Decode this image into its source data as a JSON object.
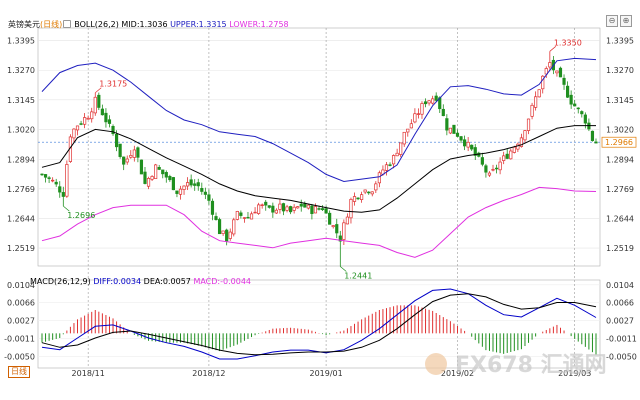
{
  "header": {
    "pair": "英镑美元",
    "period": "日线",
    "boll_label": "BOLL(26,2)",
    "mid": "MID:1.3036",
    "upper": "UPPER:1.3315",
    "lower": "LOWER:1.2758"
  },
  "macd_header": {
    "label": "MACD(26,12,9)",
    "diff": "DIFF:0.0034",
    "dea": "DEA:0.0057",
    "macd": "MACD:-0.0044"
  },
  "bottom_tab": "日线",
  "window_controls": [
    "⊖",
    "⊕"
  ],
  "watermark": "FX678 汇通网",
  "colors": {
    "up": "#e03030",
    "down": "#1f8f1f",
    "mid": "#000000",
    "upper": "#2020c0",
    "lower": "#e030e0",
    "diff": "#0000c8",
    "dea": "#000000",
    "current": "#e07b00"
  },
  "chart_data": {
    "type": "candlestick",
    "price_ticks": [
      "1.3395",
      "1.3270",
      "1.3145",
      "1.3020",
      "1.2894",
      "1.2769",
      "1.2644",
      "1.2519"
    ],
    "price_range": [
      1.246,
      1.344
    ],
    "current_price": "1.2966",
    "annotations": [
      {
        "label": "1.3175",
        "index": 15,
        "value": 1.3175,
        "kind": "high"
      },
      {
        "label": "1.2696",
        "index": 6,
        "value": 1.2696,
        "kind": "low"
      },
      {
        "label": "1.2441",
        "index": 84,
        "value": 1.2441,
        "kind": "low"
      },
      {
        "label": "1.3350",
        "index": 143,
        "value": 1.335,
        "kind": "high"
      }
    ],
    "date_labels": [
      {
        "label": "2018/11",
        "index": 13
      },
      {
        "label": "2018/12",
        "index": 47
      },
      {
        "label": "2019/01",
        "index": 80
      },
      {
        "label": "2019/02",
        "index": 117
      },
      {
        "label": "2019/03",
        "index": 150
      }
    ],
    "boll": {
      "mid": [
        [
          0,
          1.286
        ],
        [
          5,
          1.288
        ],
        [
          10,
          1.2985
        ],
        [
          15,
          1.302
        ],
        [
          20,
          1.301
        ],
        [
          25,
          1.298
        ],
        [
          30,
          1.294
        ],
        [
          35,
          1.29
        ],
        [
          40,
          1.2865
        ],
        [
          45,
          1.283
        ],
        [
          50,
          1.279
        ],
        [
          55,
          1.276
        ],
        [
          60,
          1.274
        ],
        [
          65,
          1.273
        ],
        [
          70,
          1.272
        ],
        [
          75,
          1.2705
        ],
        [
          80,
          1.269
        ],
        [
          85,
          1.2675
        ],
        [
          90,
          1.267
        ],
        [
          95,
          1.268
        ],
        [
          100,
          1.273
        ],
        [
          105,
          1.279
        ],
        [
          110,
          1.285
        ],
        [
          115,
          1.2895
        ],
        [
          120,
          1.291
        ],
        [
          125,
          1.292
        ],
        [
          130,
          1.2935
        ],
        [
          135,
          1.2955
        ],
        [
          140,
          1.299
        ],
        [
          145,
          1.3025
        ],
        [
          150,
          1.3036
        ],
        [
          156,
          1.3036
        ]
      ],
      "upper": [
        [
          0,
          1.318
        ],
        [
          5,
          1.326
        ],
        [
          10,
          1.329
        ],
        [
          15,
          1.33
        ],
        [
          20,
          1.327
        ],
        [
          25,
          1.322
        ],
        [
          30,
          1.316
        ],
        [
          35,
          1.31
        ],
        [
          40,
          1.306
        ],
        [
          45,
          1.304
        ],
        [
          50,
          1.301
        ],
        [
          55,
          1.3
        ],
        [
          60,
          1.299
        ],
        [
          65,
          1.296
        ],
        [
          70,
          1.292
        ],
        [
          75,
          1.288
        ],
        [
          80,
          1.283
        ],
        [
          85,
          1.28
        ],
        [
          90,
          1.281
        ],
        [
          95,
          1.282
        ],
        [
          100,
          1.287
        ],
        [
          105,
          1.3
        ],
        [
          110,
          1.312
        ],
        [
          115,
          1.32
        ],
        [
          120,
          1.3205
        ],
        [
          125,
          1.319
        ],
        [
          130,
          1.317
        ],
        [
          135,
          1.3165
        ],
        [
          140,
          1.321
        ],
        [
          145,
          1.331
        ],
        [
          150,
          1.332
        ],
        [
          156,
          1.3315
        ]
      ],
      "lower": [
        [
          0,
          1.255
        ],
        [
          5,
          1.257
        ],
        [
          10,
          1.262
        ],
        [
          15,
          1.266
        ],
        [
          20,
          1.269
        ],
        [
          25,
          1.27
        ],
        [
          30,
          1.27
        ],
        [
          35,
          1.27
        ],
        [
          40,
          1.266
        ],
        [
          45,
          1.259
        ],
        [
          50,
          1.255
        ],
        [
          55,
          1.254
        ],
        [
          60,
          1.253
        ],
        [
          65,
          1.252
        ],
        [
          70,
          1.254
        ],
        [
          75,
          1.255
        ],
        [
          80,
          1.256
        ],
        [
          85,
          1.255
        ],
        [
          90,
          1.254
        ],
        [
          95,
          1.253
        ],
        [
          100,
          1.25
        ],
        [
          105,
          1.248
        ],
        [
          110,
          1.251
        ],
        [
          115,
          1.258
        ],
        [
          120,
          1.265
        ],
        [
          125,
          1.269
        ],
        [
          130,
          1.272
        ],
        [
          135,
          1.2745
        ],
        [
          140,
          1.2775
        ],
        [
          145,
          1.277
        ],
        [
          150,
          1.276
        ],
        [
          156,
          1.2758
        ]
      ]
    },
    "candles_keypoints": [
      [
        0,
        1.283
      ],
      [
        3,
        1.28
      ],
      [
        6,
        1.275
      ],
      [
        8,
        1.3
      ],
      [
        10,
        1.304
      ],
      [
        13,
        1.308
      ],
      [
        15,
        1.314
      ],
      [
        17,
        1.309
      ],
      [
        20,
        1.3
      ],
      [
        23,
        1.287
      ],
      [
        26,
        1.295
      ],
      [
        29,
        1.279
      ],
      [
        32,
        1.286
      ],
      [
        35,
        1.282
      ],
      [
        38,
        1.276
      ],
      [
        41,
        1.279
      ],
      [
        44,
        1.278
      ],
      [
        47,
        1.272
      ],
      [
        50,
        1.259
      ],
      [
        52,
        1.256
      ],
      [
        55,
        1.266
      ],
      [
        58,
        1.265
      ],
      [
        61,
        1.27
      ],
      [
        64,
        1.268
      ],
      [
        67,
        1.269
      ],
      [
        70,
        1.267
      ],
      [
        73,
        1.27
      ],
      [
        76,
        1.268
      ],
      [
        79,
        1.269
      ],
      [
        82,
        1.261
      ],
      [
        84,
        1.256
      ],
      [
        87,
        1.272
      ],
      [
        90,
        1.276
      ],
      [
        93,
        1.277
      ],
      [
        96,
        1.285
      ],
      [
        99,
        1.29
      ],
      [
        102,
        1.3
      ],
      [
        105,
        1.307
      ],
      [
        108,
        1.314
      ],
      [
        111,
        1.316
      ],
      [
        114,
        1.303
      ],
      [
        117,
        1.3
      ],
      [
        120,
        1.295
      ],
      [
        123,
        1.289
      ],
      [
        126,
        1.282
      ],
      [
        129,
        1.288
      ],
      [
        132,
        1.293
      ],
      [
        135,
        1.299
      ],
      [
        138,
        1.311
      ],
      [
        141,
        1.324
      ],
      [
        143,
        1.33
      ],
      [
        145,
        1.325
      ],
      [
        147,
        1.32
      ],
      [
        149,
        1.314
      ],
      [
        151,
        1.31
      ],
      [
        153,
        1.306
      ],
      [
        155,
        1.298
      ],
      [
        156,
        1.2966
      ]
    ],
    "macd": {
      "ticks": [
        "0.0104",
        "0.0066",
        "0.0027",
        "-0.0011",
        "-0.0050"
      ],
      "range": [
        -0.007,
        0.011
      ],
      "diff": [
        [
          0,
          -0.003
        ],
        [
          5,
          -0.0035
        ],
        [
          10,
          -0.001
        ],
        [
          15,
          0.0015
        ],
        [
          20,
          0.0018
        ],
        [
          25,
          0.0005
        ],
        [
          30,
          -0.001
        ],
        [
          35,
          -0.002
        ],
        [
          40,
          -0.0028
        ],
        [
          45,
          -0.004
        ],
        [
          50,
          -0.0055
        ],
        [
          55,
          -0.0055
        ],
        [
          60,
          -0.0048
        ],
        [
          65,
          -0.004
        ],
        [
          70,
          -0.0036
        ],
        [
          75,
          -0.0036
        ],
        [
          80,
          -0.0042
        ],
        [
          85,
          -0.0035
        ],
        [
          90,
          -0.0015
        ],
        [
          95,
          0.001
        ],
        [
          100,
          0.004
        ],
        [
          105,
          0.007
        ],
        [
          110,
          0.0092
        ],
        [
          115,
          0.0095
        ],
        [
          120,
          0.0085
        ],
        [
          125,
          0.006
        ],
        [
          130,
          0.004
        ],
        [
          135,
          0.0035
        ],
        [
          140,
          0.0055
        ],
        [
          145,
          0.0075
        ],
        [
          150,
          0.006
        ],
        [
          156,
          0.0034
        ]
      ],
      "dea": [
        [
          0,
          -0.002
        ],
        [
          5,
          -0.003
        ],
        [
          10,
          -0.0025
        ],
        [
          15,
          -0.001
        ],
        [
          20,
          0.0002
        ],
        [
          25,
          0.0005
        ],
        [
          30,
          -0.0002
        ],
        [
          35,
          -0.001
        ],
        [
          40,
          -0.0018
        ],
        [
          45,
          -0.0026
        ],
        [
          50,
          -0.0036
        ],
        [
          55,
          -0.0043
        ],
        [
          60,
          -0.0046
        ],
        [
          65,
          -0.0045
        ],
        [
          70,
          -0.0042
        ],
        [
          75,
          -0.004
        ],
        [
          80,
          -0.004
        ],
        [
          85,
          -0.0038
        ],
        [
          90,
          -0.003
        ],
        [
          95,
          -0.0015
        ],
        [
          100,
          0.001
        ],
        [
          105,
          0.004
        ],
        [
          110,
          0.0068
        ],
        [
          115,
          0.0082
        ],
        [
          120,
          0.0085
        ],
        [
          125,
          0.0078
        ],
        [
          130,
          0.0062
        ],
        [
          135,
          0.0052
        ],
        [
          140,
          0.0055
        ],
        [
          145,
          0.0066
        ],
        [
          150,
          0.0066
        ],
        [
          156,
          0.0057
        ]
      ]
    }
  }
}
